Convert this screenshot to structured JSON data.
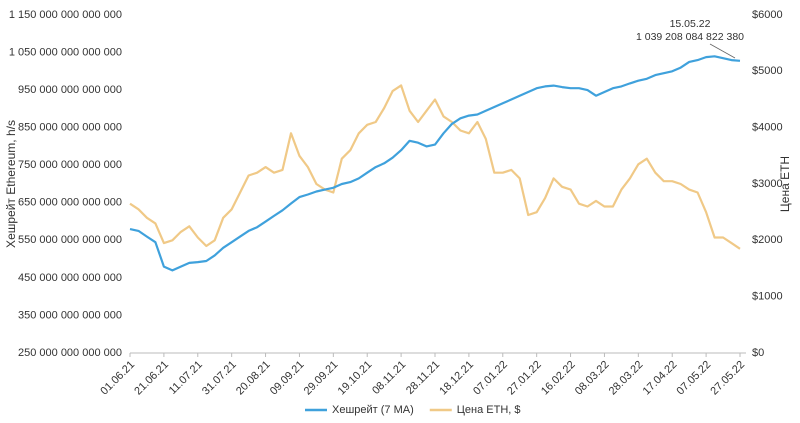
{
  "chart_data": {
    "type": "line",
    "y_label": "Хешрейт Ethereum, h/s",
    "y2_label": "Цена ETH",
    "annotations": [
      "15.05.22",
      "1 039 208 084 822 380"
    ],
    "categories": [
      "01.06.21",
      null,
      null,
      null,
      "21.06.21",
      null,
      null,
      null,
      "11.07.21",
      null,
      null,
      null,
      "31.07.21",
      null,
      null,
      null,
      "20.08.21",
      null,
      null,
      null,
      "09.09.21",
      null,
      null,
      null,
      "29.09.21",
      null,
      null,
      null,
      "19.10.21",
      null,
      null,
      null,
      "08.11.21",
      null,
      null,
      null,
      "28.11.21",
      null,
      null,
      null,
      "18.12.21",
      null,
      null,
      null,
      "07.01.22",
      null,
      null,
      null,
      "27.01.22",
      null,
      null,
      null,
      "16.02.22",
      null,
      null,
      null,
      "08.03.22",
      null,
      null,
      null,
      "28.03.22",
      null,
      null,
      null,
      "17.04.22",
      null,
      null,
      null,
      "07.05.22",
      null,
      null,
      null,
      "27.05.22"
    ],
    "series": [
      {
        "name": "Хешрейт (7 MA)",
        "color": "#3fa1dc",
        "values": [
          580000000000000,
          575000000000000,
          560000000000000,
          545000000000000,
          480000000000000,
          470000000000000,
          480000000000000,
          490000000000000,
          492000000000000,
          495000000000000,
          510000000000000,
          530000000000000,
          545000000000000,
          560000000000000,
          575000000000000,
          585000000000000,
          600000000000000,
          615000000000000,
          630000000000000,
          648000000000000,
          665000000000000,
          672000000000000,
          680000000000000,
          685000000000000,
          690000000000000,
          700000000000000,
          705000000000000,
          715000000000000,
          730000000000000,
          745000000000000,
          755000000000000,
          770000000000000,
          790000000000000,
          815000000000000,
          810000000000000,
          800000000000000,
          805000000000000,
          835000000000000,
          860000000000000,
          875000000000000,
          882000000000000,
          885000000000000,
          895000000000000,
          905000000000000,
          915000000000000,
          925000000000000,
          935000000000000,
          945000000000000,
          955000000000000,
          960000000000000,
          962000000000000,
          958000000000000,
          955000000000000,
          955000000000000,
          950000000000000,
          935000000000000,
          945000000000000,
          955000000000000,
          960000000000000,
          968000000000000,
          975000000000000,
          980000000000000,
          990000000000000,
          995000000000000,
          1000000000000000,
          1010000000000000,
          1025000000000000,
          1030000000000000,
          1038000000000000,
          1040000000000000,
          1035000000000000,
          1030000000000000,
          1028000000000000
        ]
      },
      {
        "name": "Цена ETH, $",
        "color": "#f0c987",
        "axis": "y2",
        "values": [
          2650,
          2550,
          2400,
          2300,
          1950,
          2000,
          2150,
          2250,
          2050,
          1900,
          2000,
          2400,
          2550,
          2850,
          3150,
          3200,
          3300,
          3200,
          3250,
          3900,
          3500,
          3300,
          3000,
          2900,
          2850,
          3450,
          3600,
          3900,
          4050,
          4100,
          4350,
          4650,
          4750,
          4300,
          4100,
          4300,
          4500,
          4200,
          4100,
          3950,
          3900,
          4100,
          3800,
          3200,
          3200,
          3250,
          3100,
          2450,
          2500,
          2750,
          3100,
          2950,
          2900,
          2650,
          2600,
          2700,
          2600,
          2600,
          2900,
          3100,
          3350,
          3450,
          3200,
          3050,
          3050,
          3000,
          2900,
          2850,
          2500,
          2050,
          2050,
          1950,
          1850
        ]
      }
    ],
    "ylim": [
      250000000000000,
      1150000000000000
    ],
    "yticks": [
      {
        "value": 250000000000000,
        "label": "250 000 000 000 000"
      },
      {
        "value": 350000000000000,
        "label": "350 000 000 000 000"
      },
      {
        "value": 450000000000000,
        "label": "450 000 000 000 000"
      },
      {
        "value": 550000000000000,
        "label": "550 000 000 000 000"
      },
      {
        "value": 650000000000000,
        "label": "650 000 000 000 000"
      },
      {
        "value": 750000000000000,
        "label": "750 000 000 000 000"
      },
      {
        "value": 850000000000000,
        "label": "850 000 000 000 000"
      },
      {
        "value": 950000000000000,
        "label": "950 000 000 000 000"
      },
      {
        "value": 1050000000000000,
        "label": "1 050 000 000 000 000"
      },
      {
        "value": 1150000000000000,
        "label": "1 150 000 000 000 000"
      }
    ],
    "y2lim": [
      0,
      6000
    ],
    "y2ticks": [
      {
        "value": 0,
        "label": "$0"
      },
      {
        "value": 1000,
        "label": "$1000"
      },
      {
        "value": 2000,
        "label": "$2000"
      },
      {
        "value": 3000,
        "label": "$3000"
      },
      {
        "value": 4000,
        "label": "$4000"
      },
      {
        "value": 5000,
        "label": "$5000"
      },
      {
        "value": 6000,
        "label": "$6000"
      }
    ],
    "grid": false,
    "legend": "bottom"
  }
}
